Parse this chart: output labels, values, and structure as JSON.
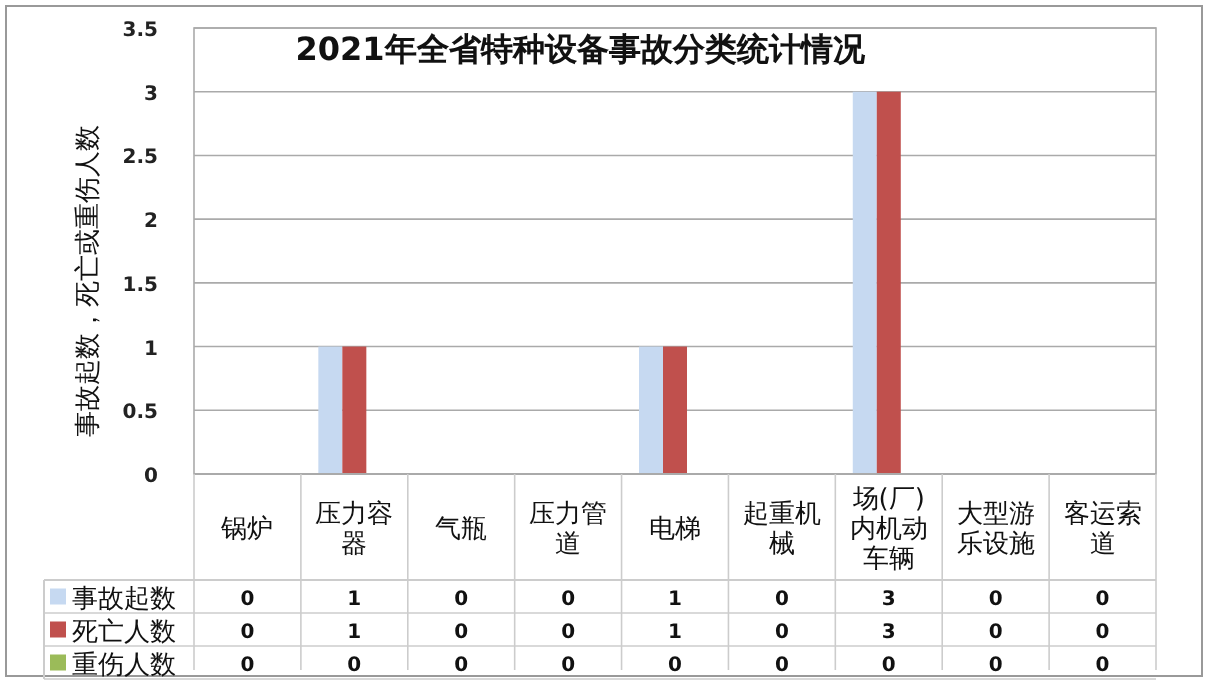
{
  "chart_data": {
    "type": "bar",
    "title": "2021年全省特种设备事故分类统计情况",
    "ylabel": "事故起数，死亡或重伤人数",
    "categories": [
      "锅炉",
      "压力容器",
      "气瓶",
      "压力管道",
      "电梯",
      "起重机械",
      "场(厂)内机动车辆",
      "大型游乐设施",
      "客运索道"
    ],
    "series": [
      {
        "name": "事故起数",
        "color": "#c6d9f1",
        "values": [
          0,
          1,
          0,
          0,
          1,
          0,
          3,
          0,
          0
        ]
      },
      {
        "name": "死亡人数",
        "color": "#c0504d",
        "values": [
          0,
          1,
          0,
          0,
          1,
          0,
          3,
          0,
          0
        ]
      },
      {
        "name": "重伤人数",
        "color": "#9bbb59",
        "values": [
          0,
          0,
          0,
          0,
          0,
          0,
          0,
          0,
          0
        ]
      }
    ],
    "ylim": [
      0,
      3.5
    ],
    "yticks": [
      0,
      0.5,
      1,
      1.5,
      2,
      2.5,
      3,
      3.5
    ],
    "grid": "y",
    "data_labels": true,
    "legend": "bottom left"
  }
}
